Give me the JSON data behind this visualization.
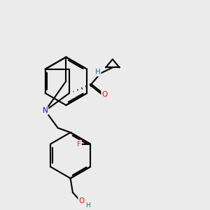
{
  "background_color": "#ebebeb",
  "bond_color": "#000000",
  "bond_width": 1.5,
  "atom_colors": {
    "N": "#0000ff",
    "O": "#ff0000",
    "F": "#ff00cc",
    "H": "#008080",
    "C": "#000000"
  },
  "figsize": [
    3.0,
    3.0
  ],
  "dpi": 100,
  "xlim": [
    1.5,
    8.5
  ],
  "ylim": [
    0.5,
    9.5
  ]
}
